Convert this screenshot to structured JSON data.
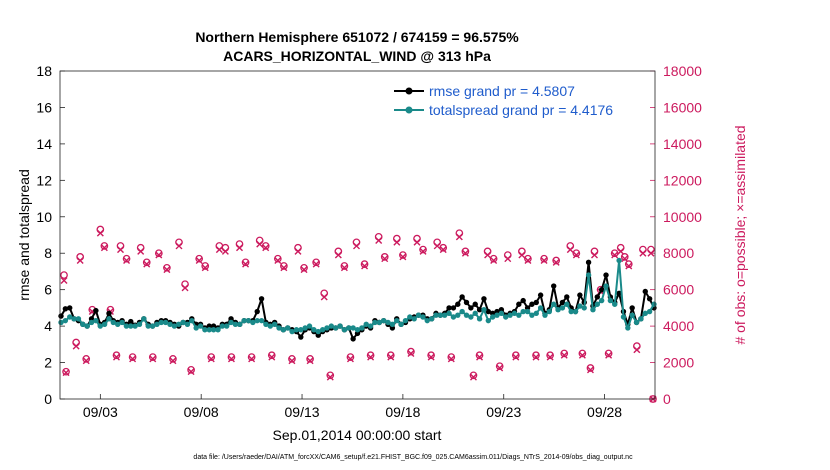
{
  "chart_data": {
    "type": "line",
    "title_line1": "Northern Hemisphere 651072 / 674159 = 96.575%",
    "title_line2": "ACARS_HORIZONTAL_WIND @ 313 hPa",
    "xlabel": "Sep.01,2014 00:00:00 start",
    "ylabel_left": "rmse and totalspread",
    "ylabel_right": "# of obs: o=possible; ×=assimilated",
    "footer": "data file: /Users/raeder/DAI/ATM_forcXX/CAM6_setup/f.e21.FHIST_BGC.f09_025.CAM6assim.011/Diags_NTrS_2014-09/obs_diag_output.nc",
    "x_range_days": [
      1.0,
      30.5
    ],
    "x_tick_values": [
      3,
      8,
      13,
      18,
      23,
      28
    ],
    "x_tick_labels": [
      "09/03",
      "09/08",
      "09/13",
      "09/18",
      "09/23",
      "09/28"
    ],
    "y_left_range": [
      0,
      18
    ],
    "y_left_ticks": [
      "0",
      "2",
      "4",
      "6",
      "8",
      "10",
      "12",
      "14",
      "16",
      "18"
    ],
    "y_right_range": [
      0,
      18000
    ],
    "y_right_ticks": [
      "0",
      "2000",
      "4000",
      "6000",
      "8000",
      "10000",
      "12000",
      "14000",
      "16000",
      "18000"
    ],
    "colors": {
      "rmse": "#000000",
      "spread": "#1a8a8a",
      "obs": "#cc1a5e",
      "legend_text": "#1f5ccc"
    },
    "legend": {
      "position": "top-right",
      "entries": [
        "rmse grand pr = 4.5807",
        "totalspread grand pr = 4.4176"
      ]
    },
    "series": [
      {
        "name": "rmse",
        "values": [
          4.55,
          4.95,
          5.0,
          4.4,
          4.3,
          4.1,
          4.0,
          4.4,
          4.85,
          4.1,
          4.2,
          4.7,
          4.3,
          4.2,
          4.3,
          4.1,
          4.25,
          4.05,
          4.2,
          4.4,
          4.1,
          4.0,
          4.2,
          4.3,
          4.3,
          4.2,
          4.1,
          4.0,
          4.2,
          4.2,
          4.4,
          4.1,
          4.1,
          3.9,
          4.0,
          4.0,
          3.9,
          4.1,
          4.1,
          4.4,
          4.2,
          4.1,
          4.3,
          4.3,
          4.3,
          4.8,
          5.5,
          4.2,
          4.1,
          4.2,
          4.0,
          3.8,
          3.9,
          3.8,
          3.7,
          3.4,
          3.8,
          3.9,
          3.7,
          3.5,
          3.7,
          3.8,
          3.9,
          3.9,
          4.0,
          3.8,
          3.9,
          3.3,
          3.6,
          3.8,
          4.0,
          3.9,
          4.3,
          4.2,
          4.3,
          4.1,
          3.9,
          4.4,
          4.1,
          4.2,
          4.4,
          4.5,
          4.6,
          4.6,
          4.4,
          4.4,
          4.7,
          4.6,
          4.7,
          5.0,
          5.0,
          5.2,
          5.6,
          5.3,
          5.0,
          5.2,
          4.9,
          5.5,
          4.8,
          4.7,
          4.8,
          4.9,
          4.6,
          4.7,
          4.8,
          5.2,
          5.4,
          5.0,
          5.2,
          5.3,
          5.7,
          4.7,
          4.9,
          6.2,
          5.0,
          5.3,
          5.6,
          5.0,
          4.8,
          5.7,
          5.3,
          7.5,
          5.1,
          5.6,
          6.0,
          6.8,
          5.6,
          5.3,
          5.8,
          4.8,
          4.1,
          5.0,
          4.2,
          4.4,
          5.9,
          5.5,
          5.0
        ],
        "color": "#000000"
      },
      {
        "name": "totalspread",
        "values": [
          4.2,
          4.3,
          4.5,
          4.4,
          4.4,
          4.1,
          4.0,
          4.2,
          4.3,
          4.0,
          4.1,
          4.4,
          4.2,
          4.1,
          4.2,
          4.0,
          4.0,
          4.0,
          4.1,
          4.4,
          4.0,
          4.0,
          4.1,
          4.2,
          4.2,
          4.1,
          4.0,
          4.1,
          4.2,
          4.1,
          4.3,
          3.9,
          4.0,
          3.8,
          3.8,
          3.8,
          3.8,
          4.0,
          4.0,
          4.2,
          4.1,
          4.1,
          4.3,
          4.3,
          4.2,
          4.3,
          4.3,
          4.1,
          4.0,
          4.1,
          3.9,
          3.8,
          3.9,
          3.7,
          3.8,
          3.8,
          3.9,
          4.0,
          3.8,
          3.7,
          3.8,
          3.9,
          4.0,
          3.9,
          4.0,
          3.8,
          3.9,
          3.9,
          3.8,
          3.9,
          4.1,
          4.0,
          4.2,
          4.2,
          4.3,
          4.2,
          4.1,
          4.3,
          4.1,
          4.3,
          4.5,
          4.4,
          4.6,
          4.5,
          4.3,
          4.4,
          4.6,
          4.6,
          4.6,
          4.7,
          4.5,
          4.6,
          4.8,
          4.6,
          4.5,
          4.7,
          4.4,
          4.9,
          4.3,
          4.5,
          4.6,
          4.7,
          4.5,
          4.6,
          4.7,
          4.6,
          4.8,
          4.8,
          4.6,
          4.7,
          5.0,
          4.6,
          4.8,
          5.2,
          4.9,
          5.0,
          5.2,
          4.8,
          4.8,
          5.1,
          5.0,
          6.8,
          4.9,
          5.2,
          5.4,
          6.2,
          5.4,
          5.2,
          7.6,
          4.5,
          3.9,
          4.6,
          4.2,
          4.4,
          4.7,
          4.8,
          5.2
        ],
        "color": "#1a8a8a"
      }
    ],
    "obs_possible": [
      [
        1.2,
        6800
      ],
      [
        1.3,
        1500
      ],
      [
        1.8,
        3100
      ],
      [
        2.0,
        7800
      ],
      [
        2.3,
        2200
      ],
      [
        2.6,
        4900
      ],
      [
        3.0,
        9300
      ],
      [
        3.2,
        8400
      ],
      [
        3.5,
        4900
      ],
      [
        3.8,
        2400
      ],
      [
        4.0,
        8400
      ],
      [
        4.3,
        7700
      ],
      [
        4.6,
        2300
      ],
      [
        5.0,
        8300
      ],
      [
        5.3,
        7500
      ],
      [
        5.6,
        2300
      ],
      [
        5.9,
        8000
      ],
      [
        6.3,
        7200
      ],
      [
        6.6,
        2200
      ],
      [
        6.9,
        8600
      ],
      [
        7.2,
        6300
      ],
      [
        7.5,
        1600
      ],
      [
        7.9,
        7700
      ],
      [
        8.2,
        7300
      ],
      [
        8.5,
        2300
      ],
      [
        8.9,
        8400
      ],
      [
        9.2,
        8300
      ],
      [
        9.5,
        2300
      ],
      [
        9.9,
        8500
      ],
      [
        10.2,
        7500
      ],
      [
        10.5,
        2300
      ],
      [
        10.9,
        8700
      ],
      [
        11.2,
        8400
      ],
      [
        11.5,
        2400
      ],
      [
        11.8,
        7700
      ],
      [
        12.1,
        7300
      ],
      [
        12.5,
        2200
      ],
      [
        12.8,
        8300
      ],
      [
        13.1,
        7200
      ],
      [
        13.4,
        2200
      ],
      [
        13.7,
        7500
      ],
      [
        14.1,
        5800
      ],
      [
        14.4,
        1300
      ],
      [
        14.8,
        8100
      ],
      [
        15.1,
        7300
      ],
      [
        15.4,
        2300
      ],
      [
        15.7,
        8600
      ],
      [
        16.1,
        7400
      ],
      [
        16.4,
        2400
      ],
      [
        16.8,
        8900
      ],
      [
        17.1,
        7800
      ],
      [
        17.4,
        2400
      ],
      [
        17.7,
        8800
      ],
      [
        18.0,
        7900
      ],
      [
        18.4,
        2600
      ],
      [
        18.7,
        8800
      ],
      [
        19.0,
        8200
      ],
      [
        19.4,
        2400
      ],
      [
        19.7,
        8600
      ],
      [
        20.0,
        8300
      ],
      [
        20.4,
        2300
      ],
      [
        20.8,
        9100
      ],
      [
        21.1,
        8100
      ],
      [
        21.5,
        1300
      ],
      [
        21.8,
        2400
      ],
      [
        22.2,
        8100
      ],
      [
        22.5,
        7700
      ],
      [
        22.8,
        1800
      ],
      [
        23.2,
        7900
      ],
      [
        23.6,
        2400
      ],
      [
        23.9,
        8100
      ],
      [
        24.2,
        7700
      ],
      [
        24.6,
        2400
      ],
      [
        25.0,
        7700
      ],
      [
        25.3,
        2400
      ],
      [
        25.6,
        7600
      ],
      [
        26.0,
        2500
      ],
      [
        26.3,
        8400
      ],
      [
        26.6,
        8000
      ],
      [
        26.9,
        2500
      ],
      [
        27.3,
        1700
      ],
      [
        27.5,
        8100
      ],
      [
        27.8,
        6000
      ],
      [
        28.2,
        2500
      ],
      [
        28.5,
        8000
      ],
      [
        28.8,
        8300
      ],
      [
        29.0,
        7800
      ],
      [
        29.2,
        7400
      ],
      [
        29.6,
        2900
      ],
      [
        29.9,
        8200
      ],
      [
        30.3,
        8200
      ],
      [
        30.4,
        0
      ]
    ],
    "obs_assimilated": [
      [
        1.2,
        6500
      ],
      [
        1.3,
        1450
      ],
      [
        1.8,
        2900
      ],
      [
        2.0,
        7600
      ],
      [
        2.3,
        2100
      ],
      [
        2.6,
        4800
      ],
      [
        3.0,
        9100
      ],
      [
        3.2,
        8300
      ],
      [
        3.5,
        4800
      ],
      [
        3.8,
        2300
      ],
      [
        4.0,
        8200
      ],
      [
        4.3,
        7600
      ],
      [
        4.6,
        2200
      ],
      [
        5.0,
        8100
      ],
      [
        5.3,
        7400
      ],
      [
        5.6,
        2200
      ],
      [
        5.9,
        7900
      ],
      [
        6.3,
        7100
      ],
      [
        6.6,
        2100
      ],
      [
        6.9,
        8400
      ],
      [
        7.2,
        6100
      ],
      [
        7.5,
        1500
      ],
      [
        7.9,
        7600
      ],
      [
        8.2,
        7200
      ],
      [
        8.5,
        2200
      ],
      [
        8.9,
        8200
      ],
      [
        9.2,
        8100
      ],
      [
        9.5,
        2200
      ],
      [
        9.9,
        8300
      ],
      [
        10.2,
        7400
      ],
      [
        10.5,
        2200
      ],
      [
        10.9,
        8500
      ],
      [
        11.2,
        8300
      ],
      [
        11.5,
        2300
      ],
      [
        11.8,
        7600
      ],
      [
        12.1,
        7200
      ],
      [
        12.5,
        2100
      ],
      [
        12.8,
        8100
      ],
      [
        13.1,
        7100
      ],
      [
        13.4,
        2100
      ],
      [
        13.7,
        7400
      ],
      [
        14.1,
        5600
      ],
      [
        14.4,
        1200
      ],
      [
        14.8,
        7900
      ],
      [
        15.1,
        7200
      ],
      [
        15.4,
        2200
      ],
      [
        15.7,
        8400
      ],
      [
        16.1,
        7300
      ],
      [
        16.4,
        2300
      ],
      [
        16.8,
        8700
      ],
      [
        17.1,
        7700
      ],
      [
        17.4,
        2300
      ],
      [
        17.7,
        8600
      ],
      [
        18.0,
        7800
      ],
      [
        18.4,
        2500
      ],
      [
        18.7,
        8600
      ],
      [
        19.0,
        8100
      ],
      [
        19.4,
        2300
      ],
      [
        19.7,
        8400
      ],
      [
        20.0,
        8200
      ],
      [
        20.4,
        2200
      ],
      [
        20.8,
        8900
      ],
      [
        21.1,
        8000
      ],
      [
        21.5,
        1200
      ],
      [
        21.8,
        2300
      ],
      [
        22.2,
        7900
      ],
      [
        22.5,
        7600
      ],
      [
        22.8,
        1700
      ],
      [
        23.2,
        7700
      ],
      [
        23.6,
        2300
      ],
      [
        23.9,
        7900
      ],
      [
        24.2,
        7600
      ],
      [
        24.6,
        2300
      ],
      [
        25.0,
        7600
      ],
      [
        25.3,
        2300
      ],
      [
        25.6,
        7500
      ],
      [
        26.0,
        2400
      ],
      [
        26.3,
        8200
      ],
      [
        26.6,
        7900
      ],
      [
        26.9,
        2400
      ],
      [
        27.3,
        1600
      ],
      [
        27.5,
        7900
      ],
      [
        27.8,
        5900
      ],
      [
        28.2,
        2400
      ],
      [
        28.5,
        7900
      ],
      [
        28.8,
        8100
      ],
      [
        29.0,
        7700
      ],
      [
        29.2,
        7300
      ],
      [
        29.6,
        2700
      ],
      [
        29.9,
        8000
      ],
      [
        30.3,
        8000
      ],
      [
        30.4,
        0
      ]
    ]
  }
}
